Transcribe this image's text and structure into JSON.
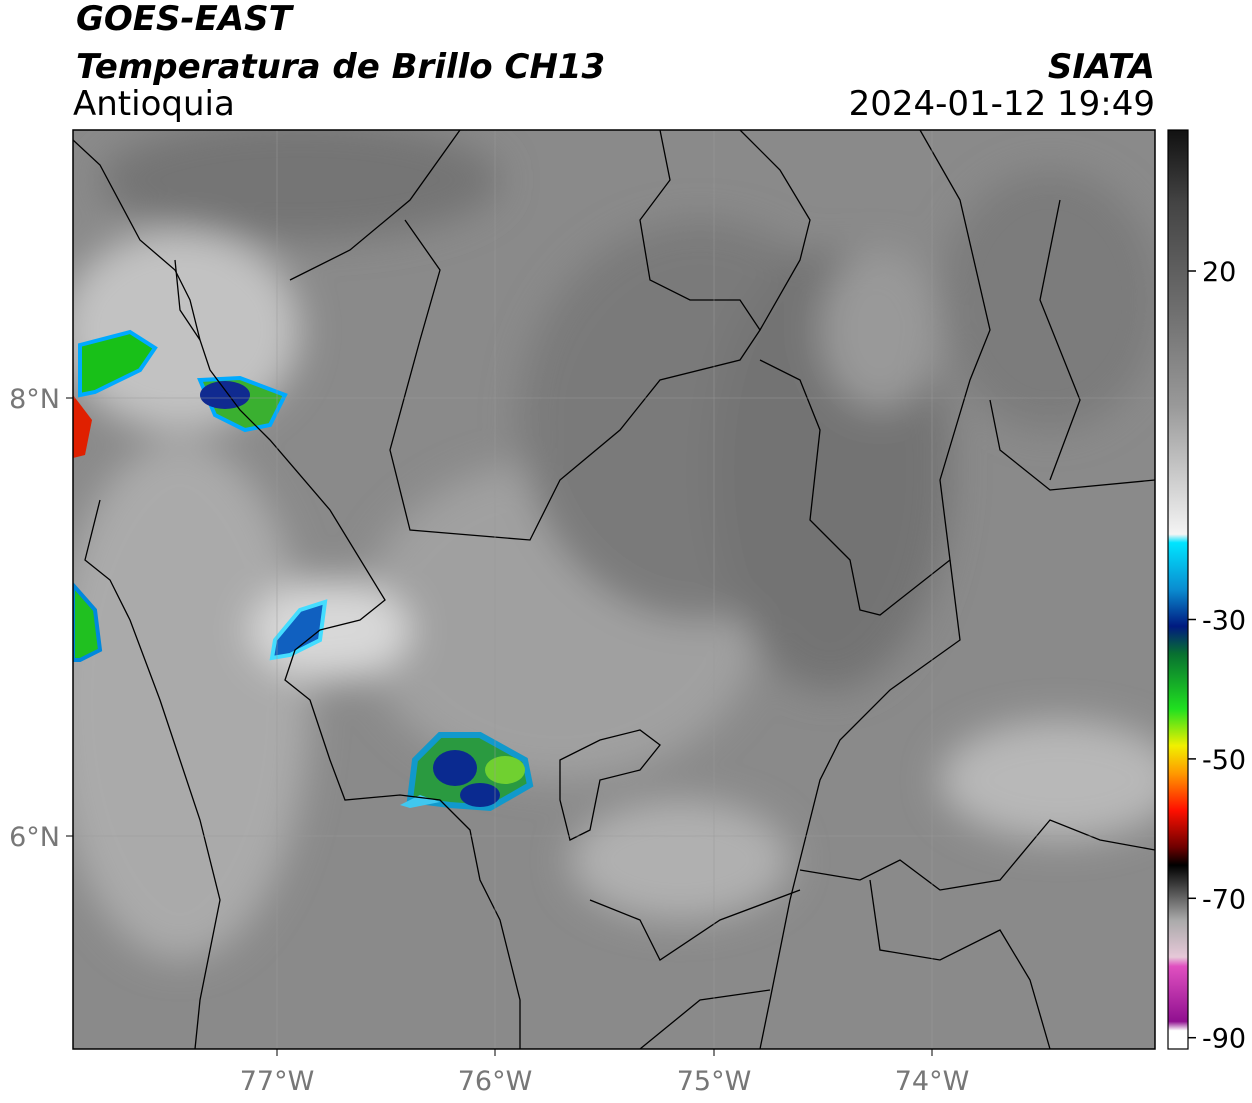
{
  "header": {
    "satellite": "GOES-EAST",
    "product": "Temperatura de Brillo CH13",
    "region": "Antioquia",
    "source": "SIATA",
    "datetime": "2024-01-12 19:49"
  },
  "map": {
    "lat_labels": [
      "8°N",
      "6°N"
    ],
    "lon_labels": [
      "77°W",
      "76°W",
      "75°W",
      "74°W"
    ]
  },
  "colorbar": {
    "ticks": [
      20,
      -30,
      -50,
      -70,
      -90
    ]
  }
}
